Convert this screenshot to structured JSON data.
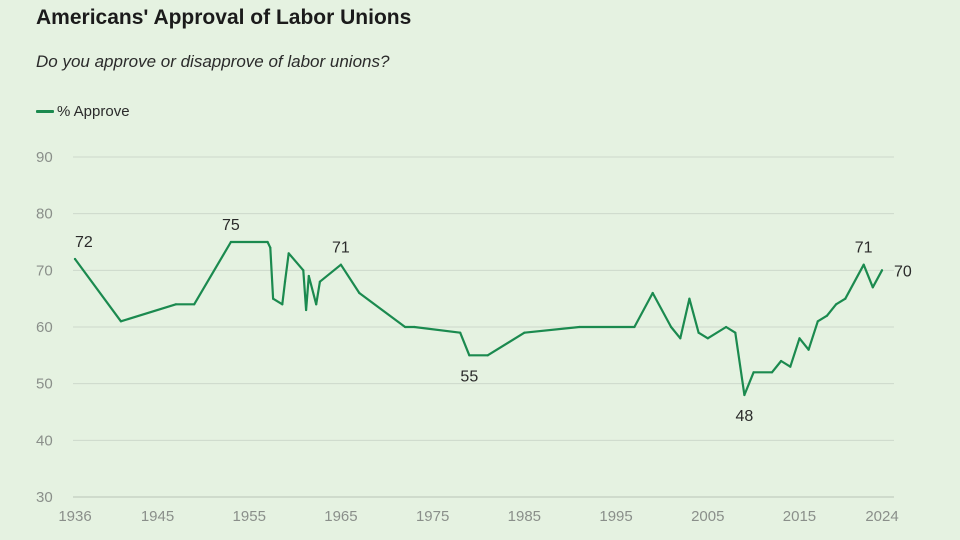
{
  "title": "Americans' Approval of Labor Unions",
  "subtitle": "Do you approve or disapprove of labor unions?",
  "chart_data": {
    "type": "line",
    "title": "Americans' Approval of Labor Unions",
    "subtitle": "Do you approve or disapprove of labor unions?",
    "xlabel": "",
    "ylabel": "",
    "xlim": [
      1936,
      2024
    ],
    "ylim": [
      30,
      90
    ],
    "x_ticks": [
      "1936",
      "1945",
      "1955",
      "1965",
      "1975",
      "1985",
      "1995",
      "2005",
      "2015",
      "2024"
    ],
    "x_tick_values": [
      1936,
      1945,
      1955,
      1965,
      1975,
      1985,
      1995,
      2005,
      2015,
      2024
    ],
    "y_ticks": [
      "30",
      "40",
      "50",
      "60",
      "70",
      "80",
      "90"
    ],
    "y_tick_values": [
      30,
      40,
      50,
      60,
      70,
      80,
      90
    ],
    "grid": true,
    "legend_position": "top-left",
    "series": [
      {
        "name": "% Approve",
        "color": "#1b8a4f",
        "points": [
          [
            1936,
            72
          ],
          [
            1941,
            61
          ],
          [
            1947,
            64
          ],
          [
            1949,
            64
          ],
          [
            1953,
            75
          ],
          [
            1957.0,
            75
          ],
          [
            1957.3,
            74
          ],
          [
            1957.6,
            65
          ],
          [
            1958.6,
            64
          ],
          [
            1958.9,
            68
          ],
          [
            1959.3,
            73
          ],
          [
            1960.9,
            70
          ],
          [
            1961.2,
            63
          ],
          [
            1961.5,
            69
          ],
          [
            1962.3,
            64
          ],
          [
            1962.7,
            68
          ],
          [
            1965,
            71
          ],
          [
            1967,
            66
          ],
          [
            1972,
            60
          ],
          [
            1973,
            60
          ],
          [
            1978,
            59
          ],
          [
            1979,
            55
          ],
          [
            1981,
            55
          ],
          [
            1985,
            59
          ],
          [
            1991,
            60
          ],
          [
            1997,
            60
          ],
          [
            1999,
            66
          ],
          [
            2001,
            60
          ],
          [
            2002,
            58
          ],
          [
            2003,
            65
          ],
          [
            2004,
            59
          ],
          [
            2005,
            58
          ],
          [
            2007,
            60
          ],
          [
            2008,
            59
          ],
          [
            2009,
            48
          ],
          [
            2010,
            52
          ],
          [
            2012,
            52
          ],
          [
            2013,
            54
          ],
          [
            2014,
            53
          ],
          [
            2015,
            58
          ],
          [
            2016,
            56
          ],
          [
            2017,
            61
          ],
          [
            2018,
            62
          ],
          [
            2019,
            64
          ],
          [
            2020,
            65
          ],
          [
            2022,
            71
          ],
          [
            2023,
            67
          ],
          [
            2024,
            70
          ]
        ]
      }
    ],
    "annotations": [
      {
        "x": 1936,
        "y": 72,
        "text": "72",
        "position": "above"
      },
      {
        "x": 1953,
        "y": 75,
        "text": "75",
        "position": "above"
      },
      {
        "x": 1965,
        "y": 71,
        "text": "71",
        "position": "above"
      },
      {
        "x": 1979,
        "y": 55,
        "text": "55",
        "position": "below"
      },
      {
        "x": 2009,
        "y": 48,
        "text": "48",
        "position": "below"
      },
      {
        "x": 2022,
        "y": 71,
        "text": "71",
        "position": "above"
      },
      {
        "x": 2024,
        "y": 70,
        "text": "70",
        "position": "right"
      }
    ]
  }
}
